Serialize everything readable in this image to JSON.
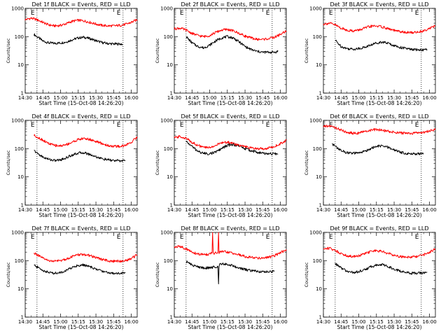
{
  "figure": {
    "common": {
      "xlabel": "Start Time (15-Oct-08 14:26:20)",
      "ylabel": "Counts/sec",
      "x_ticks": [
        "14:30",
        "14:45",
        "15:00",
        "15:15",
        "15:30",
        "15:45",
        "16:00"
      ],
      "y_ticks": [
        "1",
        "10",
        "100",
        "1000"
      ],
      "marker_label": "E",
      "colors": {
        "events": "#000000",
        "lld": "#ff0000",
        "axes": "#000000"
      }
    }
  },
  "chart_data": [
    {
      "type": "line",
      "title": "Det 1f BLACK = Events, RED = LLD",
      "xlabel": "Start Time (15-Oct-08 14:26:20)",
      "ylabel": "Counts/sec",
      "x_units": "minutes after 14:30",
      "xlim": [
        0,
        95
      ],
      "ylim": [
        1,
        1000
      ],
      "y_scale": "log",
      "markers": [
        10,
        83
      ],
      "series": [
        {
          "color": "#000000",
          "x": [
            7.5,
            10,
            15,
            20,
            25,
            30,
            35,
            40,
            45,
            50,
            55,
            60,
            65,
            70,
            75,
            80,
            82.5
          ],
          "values": [
            120,
            100,
            70,
            60,
            58,
            60,
            65,
            78,
            90,
            95,
            85,
            72,
            62,
            57,
            55,
            55,
            55
          ]
        },
        {
          "color": "#ff0000",
          "x": [
            0,
            5,
            10,
            15,
            20,
            25,
            30,
            35,
            40,
            45,
            50,
            55,
            60,
            65,
            70,
            75,
            80,
            85,
            90,
            95
          ],
          "values": [
            400,
            450,
            400,
            320,
            260,
            240,
            250,
            290,
            350,
            380,
            360,
            320,
            280,
            250,
            240,
            240,
            250,
            270,
            320,
            400
          ]
        }
      ]
    },
    {
      "type": "line",
      "title": "Det 2f BLACK = Events, RED = LLD",
      "xlabel": "Start Time (15-Oct-08 14:26:20)",
      "ylabel": "Counts/sec",
      "x_units": "minutes after 14:30",
      "xlim": [
        0,
        95
      ],
      "ylim": [
        1,
        1000
      ],
      "y_scale": "log",
      "markers": [
        10,
        83
      ],
      "series": [
        {
          "color": "#000000",
          "x": [
            10,
            15,
            20,
            25,
            30,
            35,
            40,
            45,
            50,
            55,
            60,
            65,
            70,
            75,
            80,
            85,
            88
          ],
          "values": [
            100,
            60,
            45,
            40,
            50,
            70,
            90,
            100,
            90,
            65,
            45,
            35,
            30,
            28,
            28,
            28,
            30
          ]
        },
        {
          "color": "#ff0000",
          "x": [
            0,
            5,
            10,
            15,
            20,
            25,
            30,
            35,
            40,
            45,
            50,
            55,
            60,
            65,
            70,
            75,
            80,
            85,
            90,
            95
          ],
          "values": [
            190,
            200,
            170,
            130,
            110,
            100,
            110,
            140,
            170,
            180,
            160,
            130,
            105,
            90,
            80,
            80,
            85,
            95,
            120,
            160
          ]
        }
      ]
    },
    {
      "type": "line",
      "title": "Det 3f BLACK = Events, RED = LLD",
      "xlabel": "Start Time (15-Oct-08 14:26:20)",
      "ylabel": "Counts/sec",
      "x_units": "minutes after 14:30",
      "xlim": [
        0,
        95
      ],
      "ylim": [
        1,
        1000
      ],
      "y_scale": "log",
      "markers": [
        10,
        83
      ],
      "series": [
        {
          "color": "#000000",
          "x": [
            10,
            15,
            20,
            25,
            30,
            35,
            40,
            45,
            50,
            55,
            60,
            65,
            70,
            75,
            80,
            85,
            88
          ],
          "values": [
            75,
            45,
            38,
            36,
            38,
            42,
            50,
            60,
            65,
            58,
            48,
            42,
            38,
            35,
            34,
            34,
            35
          ]
        },
        {
          "color": "#ff0000",
          "x": [
            0,
            5,
            10,
            15,
            20,
            25,
            30,
            35,
            40,
            45,
            50,
            55,
            60,
            65,
            70,
            75,
            80,
            85,
            90,
            95
          ],
          "values": [
            280,
            300,
            260,
            200,
            170,
            160,
            170,
            200,
            230,
            240,
            220,
            190,
            165,
            150,
            140,
            140,
            145,
            160,
            200,
            240
          ]
        }
      ]
    },
    {
      "type": "line",
      "title": "Det 4f BLACK = Events, RED = LLD",
      "xlabel": "Start Time (15-Oct-08 14:26:20)",
      "ylabel": "Counts/sec",
      "x_units": "minutes after 14:30",
      "xlim": [
        0,
        95
      ],
      "ylim": [
        1,
        1000
      ],
      "y_scale": "log",
      "markers": [
        10,
        83
      ],
      "series": [
        {
          "color": "#000000",
          "x": [
            7.5,
            10,
            15,
            20,
            25,
            30,
            35,
            40,
            45,
            50,
            55,
            60,
            65,
            70,
            75,
            80,
            85
          ],
          "values": [
            85,
            70,
            50,
            42,
            38,
            40,
            48,
            60,
            70,
            72,
            62,
            52,
            44,
            40,
            38,
            37,
            38
          ]
        },
        {
          "color": "#ff0000",
          "x": [
            7.5,
            10,
            15,
            20,
            25,
            30,
            35,
            40,
            45,
            50,
            55,
            60,
            65,
            70,
            75,
            80,
            85,
            90,
            95
          ],
          "values": [
            300,
            260,
            200,
            150,
            130,
            125,
            140,
            170,
            210,
            230,
            210,
            180,
            150,
            130,
            120,
            120,
            130,
            170,
            260
          ]
        }
      ]
    },
    {
      "type": "line",
      "title": "Det 5f BLACK = Events, RED = LLD",
      "xlabel": "Start Time (15-Oct-08 14:26:20)",
      "ylabel": "Counts/sec",
      "x_units": "minutes after 14:30",
      "xlim": [
        0,
        95
      ],
      "ylim": [
        1,
        1000
      ],
      "y_scale": "log",
      "markers": [
        10,
        83
      ],
      "series": [
        {
          "color": "#000000",
          "x": [
            10,
            15,
            20,
            25,
            30,
            35,
            40,
            45,
            50,
            55,
            60,
            65,
            70,
            75,
            80,
            85,
            88
          ],
          "values": [
            180,
            120,
            80,
            68,
            66,
            75,
            100,
            130,
            140,
            125,
            100,
            85,
            75,
            68,
            66,
            65,
            65
          ]
        },
        {
          "color": "#ff0000",
          "x": [
            0,
            5,
            10,
            15,
            20,
            25,
            30,
            35,
            40,
            45,
            50,
            55,
            60,
            65,
            70,
            75,
            80,
            85,
            90,
            95
          ],
          "values": [
            240,
            270,
            230,
            170,
            130,
            110,
            110,
            130,
            160,
            170,
            155,
            130,
            115,
            105,
            100,
            100,
            105,
            120,
            150,
            200
          ]
        }
      ]
    },
    {
      "type": "line",
      "title": "Det 6f BLACK = Events, RED = LLD",
      "xlabel": "Start Time (15-Oct-08 14:26:20)",
      "ylabel": "Counts/sec",
      "x_units": "minutes after 14:30",
      "xlim": [
        0,
        95
      ],
      "ylim": [
        1,
        1000
      ],
      "y_scale": "log",
      "markers": [
        10,
        83
      ],
      "series": [
        {
          "color": "#000000",
          "x": [
            7.5,
            10,
            15,
            20,
            25,
            30,
            35,
            40,
            45,
            50,
            55,
            60,
            65,
            70,
            75,
            80,
            85
          ],
          "values": [
            150,
            120,
            85,
            72,
            68,
            70,
            80,
            100,
            120,
            125,
            110,
            90,
            75,
            68,
            66,
            65,
            65
          ]
        },
        {
          "color": "#ff0000",
          "x": [
            0,
            5,
            10,
            15,
            20,
            25,
            30,
            35,
            40,
            45,
            50,
            55,
            60,
            65,
            70,
            75,
            80,
            85,
            90,
            95
          ],
          "values": [
            600,
            640,
            560,
            450,
            380,
            350,
            360,
            400,
            450,
            470,
            450,
            410,
            380,
            360,
            350,
            350,
            360,
            380,
            420,
            480
          ]
        }
      ]
    },
    {
      "type": "line",
      "title": "Det 7f BLACK = Events, RED = LLD",
      "xlabel": "Start Time (15-Oct-08 14:26:20)",
      "ylabel": "Counts/sec",
      "x_units": "minutes after 14:30",
      "xlim": [
        0,
        95
      ],
      "ylim": [
        1,
        1000
      ],
      "y_scale": "log",
      "markers": [
        10,
        83
      ],
      "series": [
        {
          "color": "#000000",
          "x": [
            7.5,
            10,
            15,
            20,
            25,
            30,
            35,
            40,
            45,
            50,
            55,
            60,
            65,
            70,
            75,
            80,
            85
          ],
          "values": [
            70,
            60,
            45,
            38,
            36,
            38,
            45,
            58,
            68,
            70,
            60,
            50,
            43,
            38,
            36,
            36,
            38
          ]
        },
        {
          "color": "#ff0000",
          "x": [
            7.5,
            10,
            15,
            20,
            25,
            30,
            35,
            40,
            45,
            50,
            55,
            60,
            65,
            70,
            75,
            80,
            85,
            90,
            95
          ],
          "values": [
            190,
            160,
            120,
            100,
            95,
            100,
            115,
            140,
            160,
            165,
            150,
            130,
            110,
            100,
            95,
            95,
            100,
            120,
            160
          ]
        }
      ]
    },
    {
      "type": "line",
      "title": "Det 8f BLACK = Events, RED = LLD",
      "xlabel": "Start Time (15-Oct-08 14:26:20)",
      "ylabel": "Counts/sec",
      "x_units": "minutes after 14:30",
      "xlim": [
        0,
        95
      ],
      "ylim": [
        1,
        1000
      ],
      "y_scale": "log",
      "markers": [
        10,
        83
      ],
      "series": [
        {
          "color": "#000000",
          "x": [
            10,
            15,
            20,
            25,
            30,
            35,
            37,
            37.5,
            38,
            38.5,
            45,
            50,
            55,
            60,
            65,
            70,
            75,
            80,
            85
          ],
          "values": [
            95,
            70,
            60,
            55,
            56,
            60,
            62,
            15,
            62,
            80,
            75,
            65,
            55,
            48,
            44,
            42,
            40,
            40,
            42
          ]
        },
        {
          "color": "#ff0000",
          "x": [
            0,
            5,
            10,
            15,
            20,
            25,
            30,
            32,
            32.5,
            33,
            35,
            37,
            37.5,
            38,
            40,
            45,
            50,
            55,
            60,
            65,
            70,
            75,
            80,
            85,
            90,
            95
          ],
          "values": [
            300,
            320,
            260,
            200,
            170,
            165,
            170,
            180,
            1000,
            175,
            185,
            190,
            1000,
            190,
            210,
            200,
            180,
            160,
            140,
            130,
            125,
            125,
            130,
            150,
            190,
            250
          ]
        }
      ]
    },
    {
      "type": "line",
      "title": "Det 9f BLACK = Events, RED = LLD",
      "xlabel": "Start Time (15-Oct-08 14:26:20)",
      "ylabel": "Counts/sec",
      "x_units": "minutes after 14:30",
      "xlim": [
        0,
        95
      ],
      "ylim": [
        1,
        1000
      ],
      "y_scale": "log",
      "markers": [
        10,
        83
      ],
      "series": [
        {
          "color": "#000000",
          "x": [
            10,
            15,
            20,
            25,
            30,
            35,
            40,
            45,
            50,
            55,
            60,
            65,
            70,
            75,
            80,
            85,
            88
          ],
          "values": [
            80,
            55,
            42,
            38,
            40,
            48,
            60,
            70,
            72,
            62,
            50,
            43,
            38,
            36,
            36,
            37,
            38
          ]
        },
        {
          "color": "#ff0000",
          "x": [
            0,
            5,
            10,
            15,
            20,
            25,
            30,
            35,
            40,
            45,
            50,
            55,
            60,
            65,
            70,
            75,
            80,
            85,
            90,
            95
          ],
          "values": [
            260,
            280,
            230,
            180,
            150,
            140,
            150,
            175,
            210,
            225,
            210,
            180,
            155,
            140,
            135,
            135,
            140,
            160,
            200,
            260
          ]
        }
      ]
    }
  ]
}
